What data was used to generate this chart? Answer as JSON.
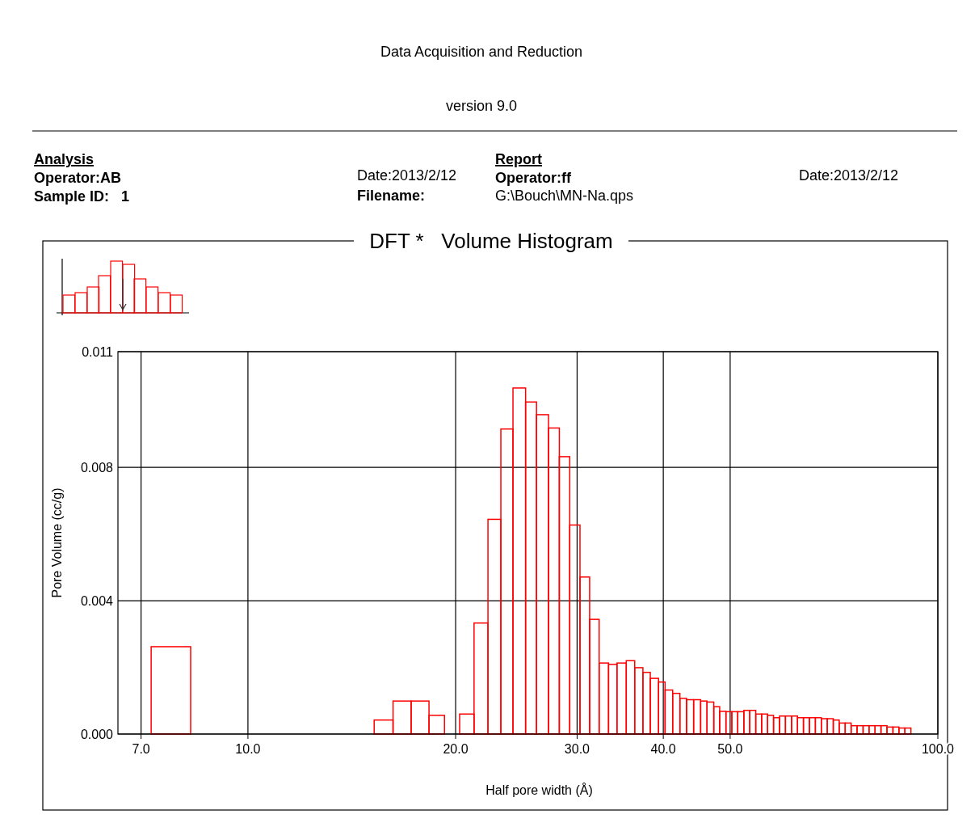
{
  "chart_data": {
    "type": "histogram",
    "title": "DFT *   Volume Histogram",
    "xlabel": "Half pore width (Å)",
    "ylabel": "Pore Volume (cc/g)",
    "annotations": [
      "Data Acquisition and Reduction",
      "version 9.0",
      "Analysis",
      "Operator:AB",
      "Sample ID:   1",
      "Date:2013/2/12",
      "Filename:",
      "Report",
      "Operator:ff",
      "G:\\Bouch\\MN-Na.qps",
      "Date:2013/2/12"
    ],
    "log": "x",
    "grid": true,
    "color": "#ff0000",
    "xlim": [
      6.48,
      100
    ],
    "xticks": [
      {
        "value": 7,
        "label": "7.0"
      },
      {
        "value": 10,
        "label": "10.0"
      },
      {
        "value": 20,
        "label": "20.0"
      },
      {
        "value": 30,
        "label": "30.0"
      },
      {
        "value": 40,
        "label": "40.0"
      },
      {
        "value": 50,
        "label": "50.0"
      },
      {
        "value": 100,
        "label": "100.0"
      }
    ],
    "ylim": [
      0,
      0.01147
    ],
    "yticks": [
      {
        "value": 0,
        "label": "0.000"
      },
      {
        "value": 0.004,
        "label": "0.004"
      },
      {
        "value": 0.008,
        "label": "0.008"
      },
      {
        "value": 0.01147,
        "label": "0.011"
      }
    ],
    "bins": [
      7.24,
      8.26,
      15.24,
      16.23,
      17.24,
      18.3,
      19.27,
      20.27,
      21.27,
      22.28,
      23.26,
      24.22,
      25.26,
      26.2,
      27.27,
      28.27,
      29.27,
      30.29,
      31.28,
      32.29,
      33.32,
      34.27,
      35.35,
      36.36,
      37.37,
      38.3,
      39.37,
      40.24,
      41.27,
      42.28,
      43.23,
      44.26,
      45.31,
      46.28,
      47.34,
      48.28,
      49.3,
      50.28,
      51.28,
      52.34,
      53.38,
      54.46,
      55.54,
      56.65,
      57.79,
      58.95,
      60.13,
      61.38,
      62.6,
      63.85,
      65.14,
      66.45,
      67.78,
      69.14,
      70.54,
      71.95,
      73.4,
      74.87,
      76.37,
      77.92,
      79.48,
      81.09,
      82.71,
      84.39,
      86.09,
      87.82,
      89.59,
      91.41
    ],
    "values": [
      0.00262,
      0,
      0.00042,
      0.00099,
      0.00099,
      0.00056,
      0,
      0.0006,
      0.00333,
      0.00644,
      0.00915,
      0.01038,
      0.00996,
      0.00958,
      0.00918,
      0.00832,
      0.00627,
      0.00471,
      0.00344,
      0.00213,
      0.00209,
      0.00213,
      0.0022,
      0.00199,
      0.00185,
      0.00167,
      0.00156,
      0.00132,
      0.00122,
      0.00107,
      0.00103,
      0.00103,
      0.00099,
      0.00096,
      0.00082,
      0.00068,
      0.00067,
      0.00067,
      0.00067,
      0.00071,
      0.00071,
      0.0006,
      0.0006,
      0.00056,
      0.00049,
      0.00054,
      0.00054,
      0.00054,
      0.00049,
      0.00049,
      0.00049,
      0.00049,
      0.00046,
      0.00046,
      0.00042,
      0.00033,
      0.00033,
      0.00025,
      0.00025,
      0.00025,
      0.00025,
      0.00025,
      0.00025,
      0.00021,
      0.00021,
      0.00018,
      0.00018
    ]
  }
}
